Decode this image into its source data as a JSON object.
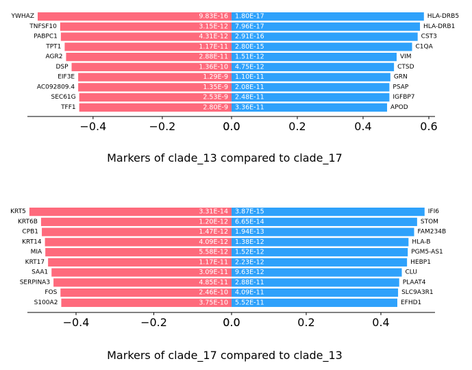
{
  "colors": {
    "left": "#fe6a7c",
    "right": "#2ea1fb",
    "axis": "#000000"
  },
  "chart_data": [
    {
      "type": "bar",
      "orientation": "diverging-horizontal",
      "title": "Markers of clade_13 compared to clade_17",
      "grid": false,
      "left": {
        "xlim": [
          -0.56,
          0
        ],
        "ticks": [
          -0.4,
          -0.2,
          0.0
        ],
        "tick_labels": [
          "−0.4",
          "−0.2",
          "0.0"
        ],
        "genes": [
          "YWHAZ",
          "TNFSF10",
          "PABPC1",
          "TPT1",
          "AGR2",
          "DSP",
          "EIF3E",
          "AC092809.4",
          "SEC61G",
          "TFF1"
        ],
        "values": [
          -0.56,
          -0.495,
          -0.493,
          -0.482,
          -0.478,
          -0.462,
          -0.443,
          -0.443,
          -0.44,
          -0.44
        ],
        "pvalues": [
          "9.83E-16",
          "3.15E-12",
          "4.31E-12",
          "1.17E-11",
          "2.88E-11",
          "1.36E-10",
          "1.29E-9",
          "1.35E-9",
          "2.53E-9",
          "2.80E-9"
        ]
      },
      "right": {
        "xlim": [
          0,
          0.62
        ],
        "ticks": [
          0.0,
          0.2,
          0.4,
          0.6
        ],
        "tick_labels": [
          "0.0",
          "0.2",
          "0.4",
          "0.6"
        ],
        "genes": [
          "HLA-DRB5",
          "HLA-DRB1",
          "CST3",
          "C1QA",
          "VIM",
          "CTSD",
          "GRN",
          "PSAP",
          "IGFBP7",
          "APOD"
        ],
        "values": [
          0.585,
          0.573,
          0.566,
          0.549,
          0.502,
          0.494,
          0.483,
          0.48,
          0.48,
          0.473
        ],
        "pvalues": [
          "1.80E-17",
          "7.96E-17",
          "2.91E-16",
          "2.80E-15",
          "1.51E-12",
          "4.75E-12",
          "1.10E-11",
          "2.08E-11",
          "2.48E-11",
          "3.36E-11"
        ]
      }
    },
    {
      "type": "bar",
      "orientation": "diverging-horizontal",
      "title": "Markers of clade_17 compared to clade_13",
      "grid": false,
      "left": {
        "xlim": [
          -0.53,
          0
        ],
        "ticks": [
          -0.4,
          -0.2,
          0.0
        ],
        "tick_labels": [
          "−0.4",
          "−0.2",
          "0.0"
        ],
        "genes": [
          "KRT5",
          "KRT6B",
          "CPB1",
          "KRT14",
          "MIA",
          "KRT17",
          "SAA1",
          "SERPINA3",
          "FOS",
          "S100A2"
        ],
        "values": [
          -0.52,
          -0.49,
          -0.488,
          -0.48,
          -0.479,
          -0.472,
          -0.463,
          -0.458,
          -0.44,
          -0.438
        ],
        "pvalues": [
          "3.31E-14",
          "1.20E-12",
          "1.47E-12",
          "4.09E-12",
          "5.58E-12",
          "1.17E-11",
          "3.09E-11",
          "4.85E-11",
          "2.46E-10",
          "3.75E-10"
        ]
      },
      "right": {
        "xlim": [
          0,
          0.54
        ],
        "ticks": [
          0.0,
          0.2,
          0.4
        ],
        "tick_labels": [
          "0.0",
          "0.2",
          "0.4"
        ],
        "genes": [
          "IFI6",
          "STOM",
          "FAM234B",
          "HLA-B",
          "PGM5-AS1",
          "HEBP1",
          "CLU",
          "PLAAT4",
          "SLC9A3R1",
          "EFHD1"
        ],
        "values": [
          0.517,
          0.497,
          0.489,
          0.474,
          0.472,
          0.47,
          0.456,
          0.449,
          0.446,
          0.444
        ],
        "pvalues": [
          "3.87E-15",
          "6.65E-14",
          "1.94E-13",
          "1.38E-12",
          "1.52E-12",
          "2.23E-12",
          "9.63E-12",
          "2.88E-11",
          "4.09E-11",
          "5.52E-11"
        ]
      }
    }
  ]
}
